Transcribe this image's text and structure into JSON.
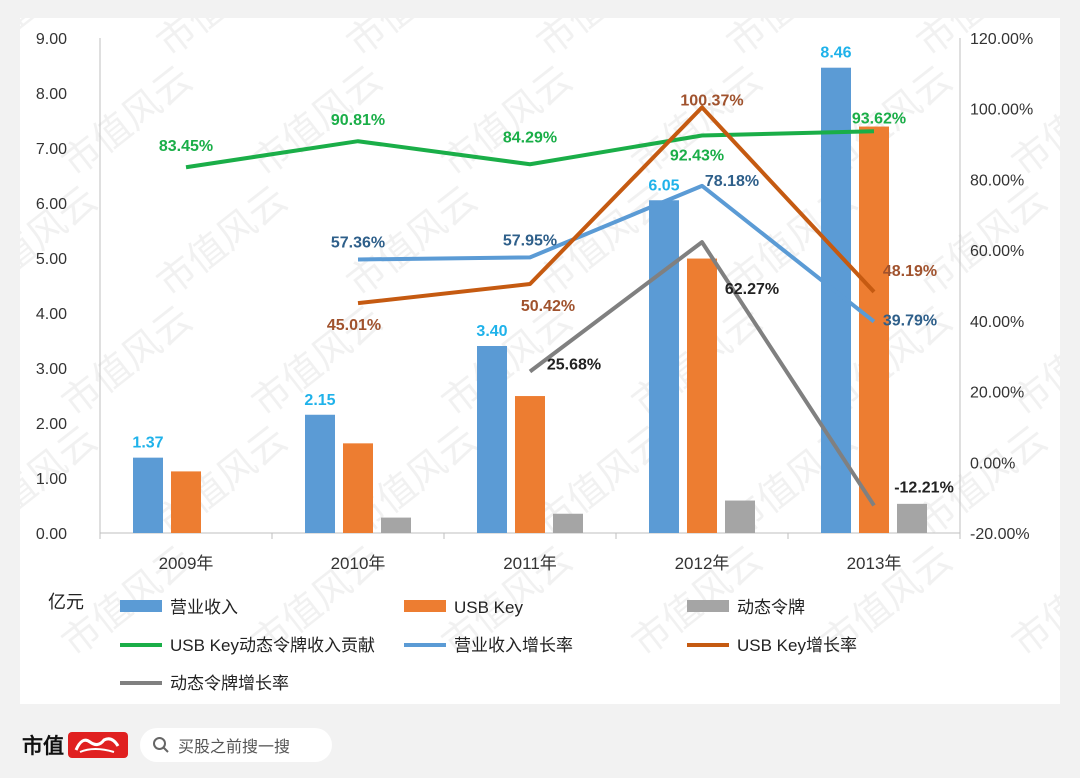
{
  "chart_data": {
    "type": "bar+line",
    "categories": [
      "2009年",
      "2010年",
      "2011年",
      "2012年",
      "2013年"
    ],
    "y_left": {
      "unit_label": "亿元",
      "ticks": [
        "0.00",
        "1.00",
        "2.00",
        "3.00",
        "4.00",
        "5.00",
        "6.00",
        "7.00",
        "8.00",
        "9.00"
      ],
      "range": [
        0,
        9
      ]
    },
    "y_right": {
      "ticks": [
        "-20.00%",
        "0.00%",
        "20.00%",
        "40.00%",
        "60.00%",
        "80.00%",
        "100.00%",
        "120.00%"
      ],
      "range": [
        -20,
        120
      ]
    },
    "bar_series": [
      {
        "name": "营业收入",
        "color": "#5b9bd5",
        "values": [
          1.37,
          2.15,
          3.4,
          6.05,
          8.46
        ],
        "labels": [
          "1.37",
          "2.15",
          "3.40",
          "6.05",
          "8.46"
        ],
        "label_color": "#1fb2ea"
      },
      {
        "name": "USB Key",
        "color": "#ed7d31",
        "values": [
          1.12,
          1.63,
          2.49,
          4.99,
          7.39
        ]
      },
      {
        "name": "动态令牌",
        "color": "#a5a5a5",
        "values": [
          null,
          0.28,
          0.35,
          0.59,
          0.53
        ]
      }
    ],
    "line_series": [
      {
        "name": "USB Key动态令牌收入贡献",
        "color": "#1aae48",
        "values": [
          83.45,
          90.81,
          84.29,
          92.43,
          93.62
        ],
        "labels": [
          "83.45%",
          "90.81%",
          "84.29%",
          "92.43%",
          "93.62%"
        ],
        "label_color": "#1aae48"
      },
      {
        "name": "营业收入增长率",
        "color": "#5b9bd5",
        "values": [
          null,
          57.36,
          57.95,
          78.18,
          39.79
        ],
        "labels": [
          "",
          "57.36%",
          "57.95%",
          "78.18%",
          "39.79%"
        ],
        "label_color": "#2e5f8a"
      },
      {
        "name": "USB Key增长率",
        "color": "#c55a11",
        "values": [
          null,
          45.01,
          50.42,
          100.37,
          48.19
        ],
        "labels": [
          "",
          "45.01%",
          "50.42%",
          "100.37%",
          "48.19%"
        ],
        "label_color": "#a0522d"
      },
      {
        "name": "动态令牌增长率",
        "color": "#808080",
        "values": [
          null,
          null,
          25.68,
          62.27,
          -12.21
        ],
        "labels": [
          "",
          "",
          "25.68%",
          "62.27%",
          "-12.21%"
        ],
        "label_color": "#222222"
      }
    ],
    "legend_placement": "bottom",
    "grid": false
  },
  "watermark": {
    "text": "市值风云"
  },
  "footer": {
    "brand_text": "市值",
    "search_placeholder": "买股之前搜一搜"
  }
}
